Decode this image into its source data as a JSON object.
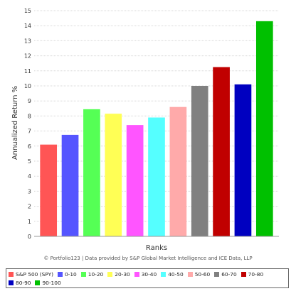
{
  "chart_data": {
    "type": "bar",
    "categories": [
      "S&P 500 (SPY)",
      "0-10",
      "10-20",
      "20-30",
      "30-40",
      "40-50",
      "50-60",
      "60-70",
      "70-80",
      "80-90",
      "90-100"
    ],
    "values": [
      6.1,
      6.75,
      8.45,
      8.15,
      7.4,
      7.9,
      8.6,
      10.0,
      11.25,
      10.1,
      14.3
    ],
    "colors": [
      "#ff5555",
      "#5555ff",
      "#55ff55",
      "#ffff55",
      "#ff55ff",
      "#55ffff",
      "#ffaaaa",
      "#808080",
      "#c00000",
      "#0000c0",
      "#00c000"
    ],
    "xlabel": "Ranks",
    "ylabel": "Annualized Return %",
    "ylim": [
      0,
      15
    ],
    "yticks": [
      0,
      1,
      2,
      3,
      4,
      5,
      6,
      7,
      8,
      9,
      10,
      11,
      12,
      13,
      14,
      15
    ],
    "grid": true,
    "legend_position": "bottom"
  },
  "credit": "© Portfolio123 | Data provided by S&P Global Market Intelligence and ICE Data, LLP"
}
